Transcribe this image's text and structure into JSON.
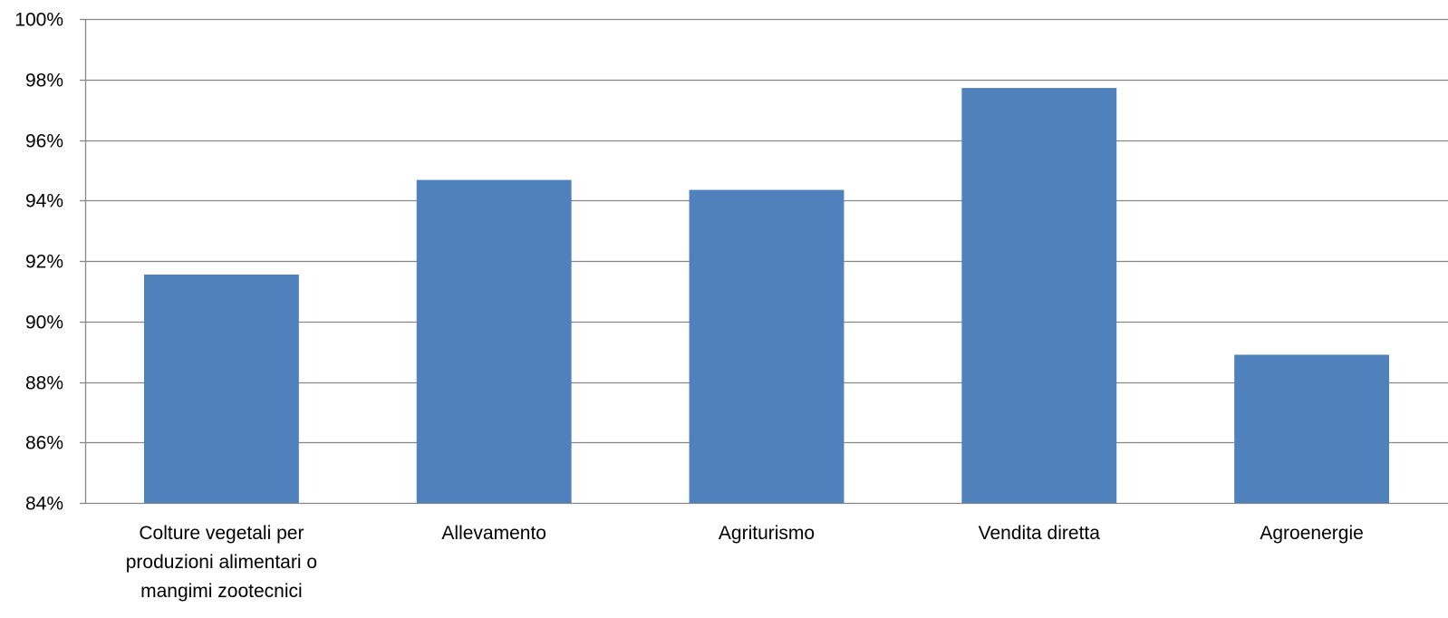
{
  "chart_data": {
    "type": "bar",
    "categories": [
      [
        "Colture vegetali per",
        "produzioni alimentari o",
        "mangimi zootecnici"
      ],
      [
        "Allevamento"
      ],
      [
        "Agriturismo"
      ],
      [
        "Vendita diretta"
      ],
      [
        "Agroenergie"
      ]
    ],
    "values": [
      91.55,
      94.68,
      94.35,
      97.72,
      88.9
    ],
    "ylim": [
      84,
      100
    ],
    "ytick_step": 2,
    "y_tick_suffix": "%",
    "grid": true,
    "legend": "none",
    "colors": {
      "bar": "#4f81bd",
      "grid": "#868686",
      "axis": "#868686"
    }
  }
}
